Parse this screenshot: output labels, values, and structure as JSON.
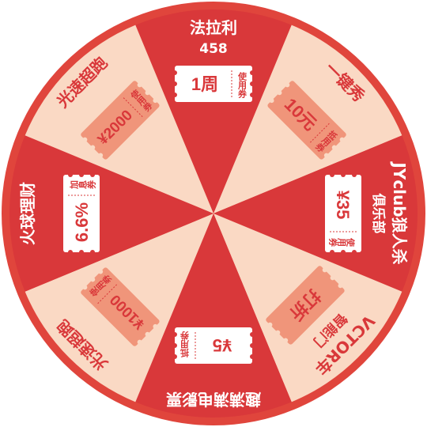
{
  "colors": {
    "rim": "#e0453c",
    "light_segment": "#fad9c4",
    "dark_segment": "#d9383a",
    "coupon_fill": "#f0957a",
    "coupon_text": "#d9383a"
  },
  "segments": [
    {
      "title": "法拉利",
      "subtitle": "458",
      "amount": "1周",
      "tag": "使用券",
      "shade": "dark"
    },
    {
      "title": "一键秀",
      "subtitle": "",
      "amount": "10元",
      "tag": "抵用券",
      "shade": "light"
    },
    {
      "title": "JYclub狼人杀",
      "subtitle": "俱乐部",
      "amount": "¥35",
      "tag": "使用券",
      "shade": "dark"
    },
    {
      "title": "VCTOR车",
      "subtitle": "智能门",
      "amount": "打折",
      "tag": "",
      "shade": "light"
    },
    {
      "title": "趣满满电影票",
      "subtitle": "",
      "amount": "¥5",
      "tag": "抵用券",
      "shade": "dark"
    },
    {
      "title": "光速超跑",
      "subtitle": "",
      "amount": "¥1000",
      "tag": "使用券",
      "shade": "light"
    },
    {
      "title": "火球理财",
      "subtitle": "",
      "amount": "6.6%",
      "tag": "加息券",
      "shade": "dark"
    },
    {
      "title": "光速超跑",
      "subtitle": "",
      "amount": "¥2000",
      "tag": "使用券",
      "shade": "light"
    }
  ]
}
